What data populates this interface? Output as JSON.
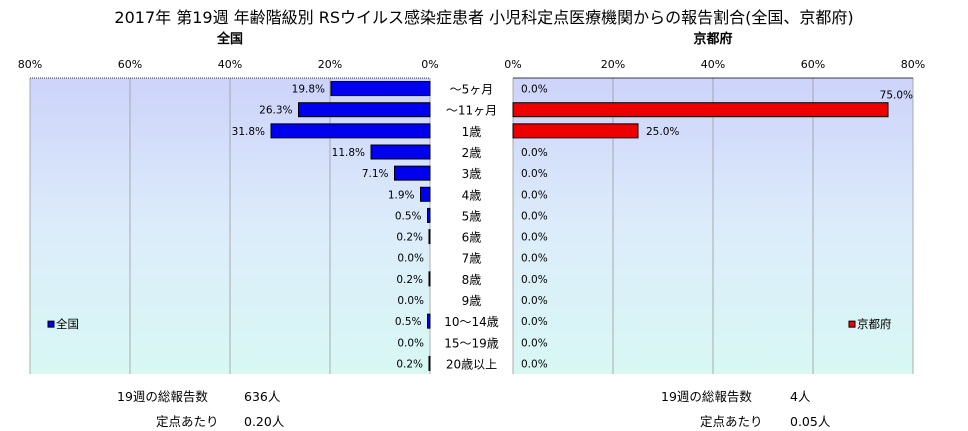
{
  "title": "2017年 第19週 年齢階級別 RSウイルス感染症患者 小児科定点医療機関からの報告割合(全国、京都府)",
  "chart_data": [
    {
      "type": "bar",
      "orientation": "horizontal",
      "title": "全国",
      "direction": "right-to-left",
      "categories": [
        "～5ヶ月",
        "～11ヶ月",
        "1歳",
        "2歳",
        "3歳",
        "4歳",
        "5歳",
        "6歳",
        "7歳",
        "8歳",
        "9歳",
        "10～14歳",
        "15～19歳",
        "20歳以上"
      ],
      "series": [
        {
          "name": "全国",
          "color": "#0000ee",
          "values": [
            19.8,
            26.3,
            31.8,
            11.8,
            7.1,
            1.9,
            0.5,
            0.2,
            0.0,
            0.2,
            0.0,
            0.5,
            0.0,
            0.2
          ],
          "labels": [
            "19.8%",
            "26.3%",
            "31.8%",
            "11.8%",
            "7.1%",
            "1.9%",
            "0.5%",
            "0.2%",
            "0.0%",
            "0.2%",
            "0.0%",
            "0.5%",
            "0.0%",
            "0.2%"
          ]
        }
      ],
      "xlim": [
        0,
        80
      ],
      "xticks": [
        "80%",
        "60%",
        "40%",
        "20%",
        "0%"
      ],
      "grid": true,
      "legend": "bottom-left"
    },
    {
      "type": "bar",
      "orientation": "horizontal",
      "title": "京都府",
      "direction": "left-to-right",
      "categories": [
        "～5ヶ月",
        "～11ヶ月",
        "1歳",
        "2歳",
        "3歳",
        "4歳",
        "5歳",
        "6歳",
        "7歳",
        "8歳",
        "9歳",
        "10～14歳",
        "15～19歳",
        "20歳以上"
      ],
      "series": [
        {
          "name": "京都府",
          "color": "#ee0000",
          "values": [
            0.0,
            75.0,
            25.0,
            0.0,
            0.0,
            0.0,
            0.0,
            0.0,
            0.0,
            0.0,
            0.0,
            0.0,
            0.0,
            0.0
          ],
          "labels": [
            "0.0%",
            "75.0%",
            "25.0%",
            "0.0%",
            "0.0%",
            "0.0%",
            "0.0%",
            "0.0%",
            "0.0%",
            "0.0%",
            "0.0%",
            "0.0%",
            "0.0%",
            "0.0%"
          ]
        }
      ],
      "xlim": [
        0,
        80
      ],
      "xticks": [
        "0%",
        "20%",
        "40%",
        "60%",
        "80%"
      ],
      "grid": true,
      "legend": "bottom-right"
    }
  ],
  "footer": {
    "left": {
      "total_label": "19週の総報告数",
      "total_value": "636人",
      "per_label": "定点あたり",
      "per_value": "0.20人"
    },
    "right": {
      "total_label": "19週の総報告数",
      "total_value": "4人",
      "per_label": "定点あたり",
      "per_value": "0.05人"
    }
  }
}
